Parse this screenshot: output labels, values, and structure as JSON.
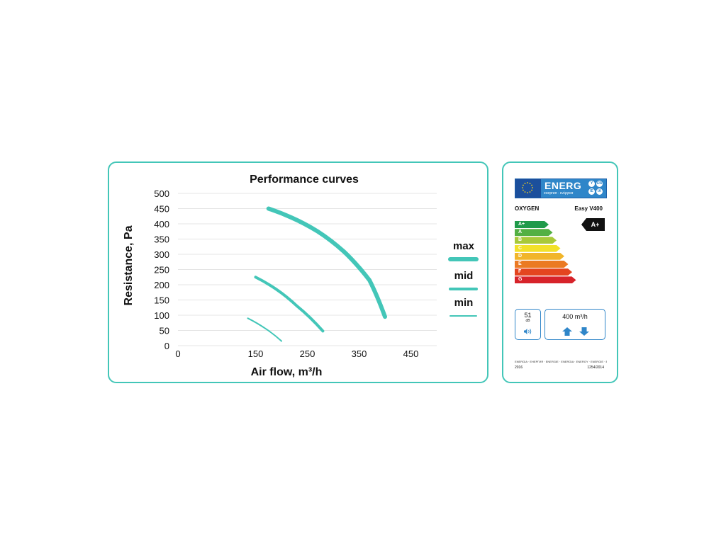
{
  "chart_data": {
    "type": "line",
    "title": "Performance curves",
    "xlabel": "Air flow, m³/h",
    "ylabel": "Resistance, Pa",
    "xlim": [
      0,
      500
    ],
    "ylim": [
      0,
      500
    ],
    "xticks": [
      "0",
      "150",
      "250",
      "350",
      "450"
    ],
    "yticks": [
      "0",
      "50",
      "100",
      "150",
      "200",
      "250",
      "300",
      "350",
      "400",
      "450",
      "500"
    ],
    "grid": "horizontal",
    "legend": "right",
    "series": [
      {
        "name": "max",
        "x": [
          175,
          220,
          270,
          320,
          370,
          400
        ],
        "y": [
          450,
          420,
          375,
          310,
          215,
          95
        ]
      },
      {
        "name": "mid",
        "x": [
          150,
          190,
          230,
          280
        ],
        "y": [
          225,
          185,
          130,
          48
        ]
      },
      {
        "name": "min",
        "x": [
          135,
          170,
          200
        ],
        "y": [
          90,
          55,
          15
        ]
      }
    ],
    "colors": {
      "line": "#43c6b8",
      "grid": "#e4e4e4",
      "border": "#43c6b8"
    }
  },
  "energy_label": {
    "energ_word": "ENERG",
    "energ_sub": "енергия · ενέργεια",
    "dots": [
      "Y",
      "IJA",
      "IE",
      "IA"
    ],
    "supplier": "OXYGEN",
    "model": "Easy V400",
    "classes": [
      {
        "label": "A+",
        "color": "#1f9a4a"
      },
      {
        "label": "A",
        "color": "#53b043"
      },
      {
        "label": "B",
        "color": "#a8c93a"
      },
      {
        "label": "C",
        "color": "#f2e12a"
      },
      {
        "label": "D",
        "color": "#f1b52a"
      },
      {
        "label": "E",
        "color": "#eb7a23"
      },
      {
        "label": "F",
        "color": "#e4451f"
      },
      {
        "label": "G",
        "color": "#d7232a"
      }
    ],
    "rating": "A+",
    "noise_value": "51",
    "noise_unit": "dB",
    "flow": "400 m³/h",
    "languages": "ENERGIA · ЕНЕРГИЯ · ENERGIE · ENERGIA · ENERGY · ENERGIE · ENERGIA",
    "year": "2016",
    "regulation": "1254/2014",
    "colors": {
      "blue": "#2f86c9",
      "dark_blue": "#1b4f9c",
      "star": "#f5d31c"
    }
  }
}
